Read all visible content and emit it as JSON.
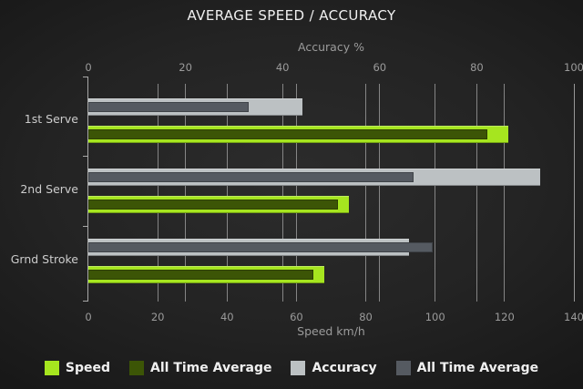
{
  "title": "AVERAGE SPEED / ACCURACY",
  "chart_data": {
    "type": "bar",
    "orientation": "horizontal",
    "title": "AVERAGE SPEED / ACCURACY",
    "categories": [
      "1st Serve",
      "2nd Serve",
      "Grnd Stroke"
    ],
    "axes": {
      "top": {
        "label": "Accuracy %",
        "min": 0,
        "max": 100,
        "ticks": [
          0,
          20,
          40,
          60,
          80,
          100
        ]
      },
      "bottom": {
        "label": "Speed km/h",
        "min": 0,
        "max": 140,
        "ticks": [
          0,
          20,
          40,
          60,
          80,
          100,
          120,
          140
        ]
      }
    },
    "series": [
      {
        "name": "Speed",
        "axis": "bottom",
        "role": "outer",
        "color": "#a6e51f",
        "values": [
          121,
          75,
          68
        ]
      },
      {
        "name": "All Time Average",
        "axis": "bottom",
        "role": "inner",
        "color": "#3c5506",
        "values": [
          115,
          72,
          65
        ]
      },
      {
        "name": "Accuracy",
        "axis": "top",
        "role": "outer",
        "color": "#bcc1c3",
        "values": [
          44,
          93,
          66
        ]
      },
      {
        "name": "All Time Average",
        "axis": "top",
        "role": "inner",
        "color": "#555a61",
        "values": [
          33,
          67,
          71
        ]
      }
    ],
    "legend": [
      {
        "label": "Speed",
        "color": "#a6e51f"
      },
      {
        "label": "All Time Average",
        "color": "#3c5506"
      },
      {
        "label": "Accuracy",
        "color": "#bcc1c3"
      },
      {
        "label": "All Time Average",
        "color": "#555a61"
      }
    ],
    "grid": true,
    "gridline_color": "#9e9e9e",
    "colors": {
      "background_center": "#2c2c2c",
      "background_edge": "#141414",
      "title_text": "#f0f0f0",
      "axis_text": "#9b9b9b",
      "category_text": "#cccccc",
      "legend_text": "#f0f0f0"
    }
  }
}
